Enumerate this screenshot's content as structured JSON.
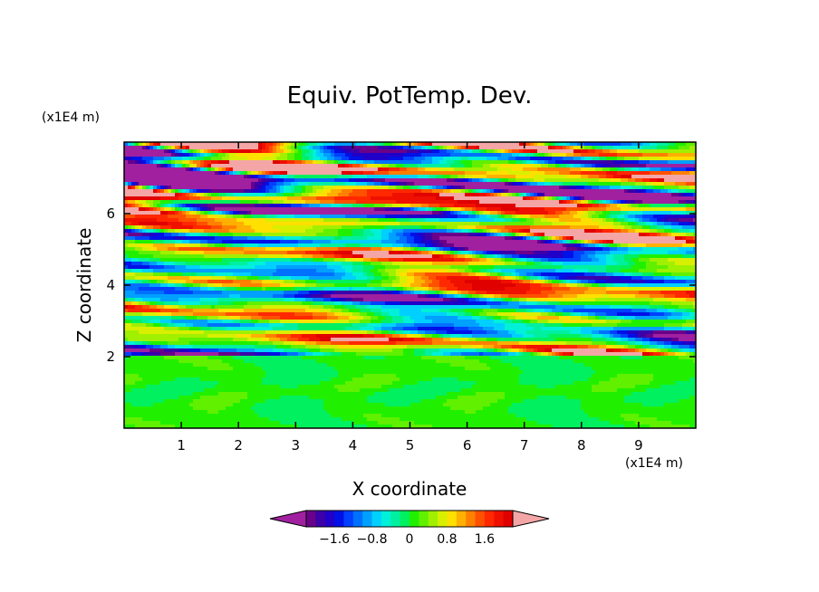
{
  "chart_data": {
    "type": "heatmap",
    "title": "Equiv. PotTemp. Dev.",
    "xlabel": "X coordinate",
    "ylabel": "Z coordinate",
    "x_scale_label": "(x1E4 m)",
    "y_scale_label": "(x1E4 m)",
    "xlim": [
      0,
      10
    ],
    "ylim": [
      0,
      8
    ],
    "x_ticks": [
      1,
      2,
      3,
      4,
      5,
      6,
      7,
      8,
      9
    ],
    "y_ticks": [
      2,
      4,
      6
    ],
    "x_tick_labels": [
      "1",
      "2",
      "3",
      "4",
      "5",
      "6",
      "7",
      "8",
      "9"
    ],
    "y_tick_labels": [
      "2",
      "4",
      "6"
    ],
    "regions": [
      {
        "zmin": 0,
        "zmax": 2.0,
        "description": "nearly uniform field, values near 0 (green / cyan patches)",
        "value_range": [
          -0.4,
          0.4
        ]
      },
      {
        "zmin": 2.0,
        "zmax": 6.0,
        "description": "banded layers with values roughly -1.6 to 1.6",
        "value_range": [
          -2.0,
          2.0
        ]
      },
      {
        "zmin": 6.0,
        "zmax": 8.0,
        "description": "strong alternating bands saturating both ends of the scale",
        "value_range": [
          -2.4,
          2.4
        ]
      }
    ],
    "colorbar": {
      "levels": [
        -2.2,
        -2.0,
        -1.8,
        -1.6,
        -1.4,
        -1.2,
        -1.0,
        -0.8,
        -0.6,
        -0.4,
        -0.2,
        0,
        0.2,
        0.4,
        0.6,
        0.8,
        1.0,
        1.2,
        1.4,
        1.6,
        1.8,
        2.0,
        2.2
      ],
      "tick_values": [
        -1.6,
        -0.8,
        0,
        0.8,
        1.6
      ],
      "tick_labels": [
        "−1.6",
        "−0.8",
        "0",
        "0.8",
        "1.6"
      ],
      "under_color": "#a020a0",
      "over_color": "#f4a6a6",
      "colors": [
        "#6a008a",
        "#3c00a8",
        "#2000c8",
        "#0010e6",
        "#0040ff",
        "#0070ff",
        "#00a0ff",
        "#00d0ff",
        "#00f0d8",
        "#00f0a0",
        "#00f060",
        "#20f000",
        "#60f000",
        "#a0f000",
        "#d8f000",
        "#ffe000",
        "#ffb000",
        "#ff8000",
        "#ff5000",
        "#ff2800",
        "#f01000",
        "#e00000"
      ]
    }
  }
}
